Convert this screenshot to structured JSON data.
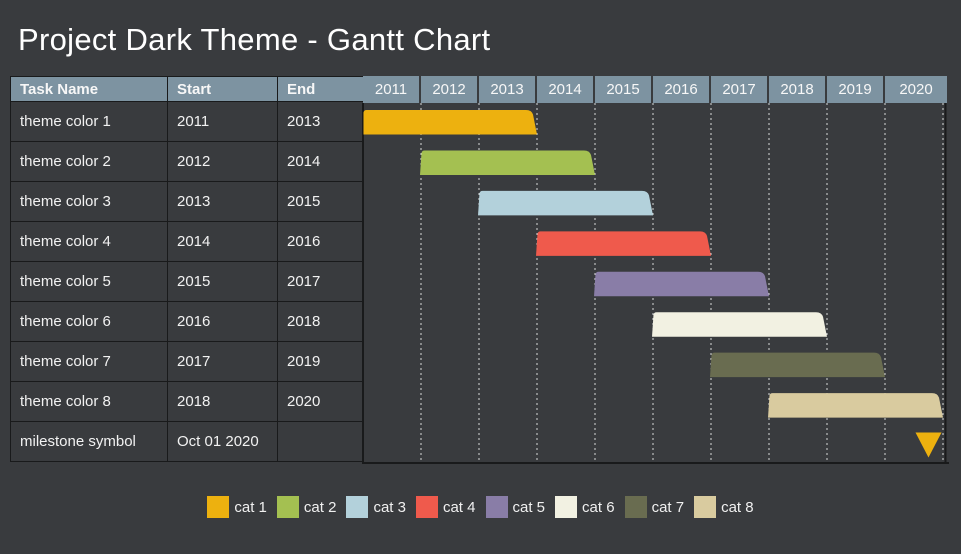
{
  "title": "Project Dark Theme - Gantt Chart",
  "table": {
    "headers": [
      "Task Name",
      "Start",
      "End"
    ],
    "rows": [
      {
        "task": "theme color 1",
        "start": "2011",
        "end": "2013"
      },
      {
        "task": "theme color 2",
        "start": "2012",
        "end": "2014"
      },
      {
        "task": "theme color 3",
        "start": "2013",
        "end": "2015"
      },
      {
        "task": "theme color 4",
        "start": "2014",
        "end": "2016"
      },
      {
        "task": "theme color 5",
        "start": "2015",
        "end": "2017"
      },
      {
        "task": "theme color 6",
        "start": "2016",
        "end": "2018"
      },
      {
        "task": "theme color 7",
        "start": "2017",
        "end": "2019"
      },
      {
        "task": "theme color 8",
        "start": "2018",
        "end": "2020"
      },
      {
        "task": "milestone symbol",
        "start": "Oct 01 2020",
        "end": ""
      }
    ]
  },
  "chart_data": {
    "type": "bar",
    "variant": "gantt",
    "title": "Project Dark Theme - Gantt Chart",
    "x_axis": {
      "labels": [
        "2011",
        "2012",
        "2013",
        "2014",
        "2015",
        "2016",
        "2017",
        "2018",
        "2019",
        "2020"
      ],
      "min": 2011,
      "max": 2021,
      "gridlines": "dashed-vertical"
    },
    "bar_span_semantics": "each bar runs from the start of its start-year to the end of its end-year",
    "bars": [
      {
        "task": "theme color 1",
        "start": 2011,
        "end": 2013,
        "category": "cat 1",
        "color": "#EDB10F"
      },
      {
        "task": "theme color 2",
        "start": 2012,
        "end": 2014,
        "category": "cat 2",
        "color": "#A4C051"
      },
      {
        "task": "theme color 3",
        "start": 2013,
        "end": 2015,
        "category": "cat 3",
        "color": "#B3D1DB"
      },
      {
        "task": "theme color 4",
        "start": 2014,
        "end": 2016,
        "category": "cat 4",
        "color": "#EF5A4C"
      },
      {
        "task": "theme color 5",
        "start": 2015,
        "end": 2017,
        "category": "cat 5",
        "color": "#897DA7"
      },
      {
        "task": "theme color 6",
        "start": 2016,
        "end": 2018,
        "category": "cat 6",
        "color": "#F2F1E2"
      },
      {
        "task": "theme color 7",
        "start": 2017,
        "end": 2019,
        "category": "cat 7",
        "color": "#696C50"
      },
      {
        "task": "theme color 8",
        "start": 2018,
        "end": 2020,
        "category": "cat 8",
        "color": "#D9CB9F"
      }
    ],
    "milestone": {
      "task": "milestone symbol",
      "date": "Oct 01 2020",
      "year_position": 2020.75,
      "symbol": "triangle-down",
      "color": "#EDB10F"
    },
    "legend_position": "bottom-center"
  },
  "legend": {
    "items": [
      {
        "label": "cat 1",
        "color": "#EDB10F"
      },
      {
        "label": "cat 2",
        "color": "#A4C051"
      },
      {
        "label": "cat 3",
        "color": "#B3D1DB"
      },
      {
        "label": "cat 4",
        "color": "#EF5A4C"
      },
      {
        "label": "cat 5",
        "color": "#897DA7"
      },
      {
        "label": "cat 6",
        "color": "#F2F1E2"
      },
      {
        "label": "cat 7",
        "color": "#696C50"
      },
      {
        "label": "cat 8",
        "color": "#D9CB9F"
      }
    ]
  },
  "colors": {
    "background": "#393B3E",
    "header_bg": "#7D93A1",
    "text": "#F2F2F2",
    "border": "#191A1B",
    "gridline": "#D8D8D8"
  }
}
